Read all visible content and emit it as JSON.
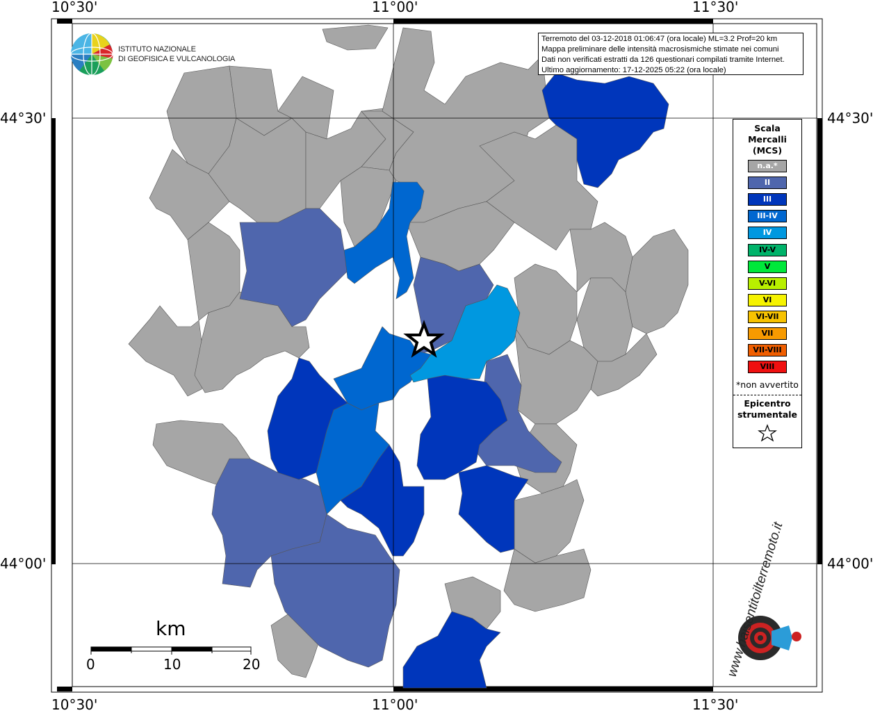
{
  "map": {
    "coordinates": {
      "lon_left": "10°30'",
      "lon_center": "11°00'",
      "lon_right": "11°30'",
      "lat_top": "44°30'",
      "lat_bottom": "44°00'"
    },
    "info": {
      "line1": "Terremoto del 03-12-2018 01:06:47 (ora locale) ML=3.2 Prof=20 km",
      "line2": "Mappa preliminare delle intensità macrosismiche stimate nei comuni",
      "line3": "Dati non verificati estratti da 126 questionari compilati tramite Internet.",
      "line4": "Ultimo aggiornamento: 17-12-2025 05:22 (ora locale)"
    },
    "legend": {
      "title_line1": "Scala",
      "title_line2": "Mercalli",
      "title_line3": "(MCS)",
      "items": [
        {
          "label": "n.a.*",
          "color": "#a6a6a6",
          "text_color": "#ffffff"
        },
        {
          "label": "II",
          "color": "#4f66ad",
          "text_color": "#ffffff"
        },
        {
          "label": "III",
          "color": "#0036bb",
          "text_color": "#ffffff"
        },
        {
          "label": "III-IV",
          "color": "#0067d0",
          "text_color": "#ffffff"
        },
        {
          "label": "IV",
          "color": "#0098e0",
          "text_color": "#ffffff"
        },
        {
          "label": "IV-V",
          "color": "#00b36a",
          "text_color": "#000000"
        },
        {
          "label": "V",
          "color": "#00e83a",
          "text_color": "#000000"
        },
        {
          "label": "V-VI",
          "color": "#b8f000",
          "text_color": "#000000"
        },
        {
          "label": "VI",
          "color": "#f6f300",
          "text_color": "#000000"
        },
        {
          "label": "VI-VII",
          "color": "#f7c200",
          "text_color": "#000000"
        },
        {
          "label": "VII",
          "color": "#f79a00",
          "text_color": "#000000"
        },
        {
          "label": "VII-VIII",
          "color": "#f05e00",
          "text_color": "#000000"
        },
        {
          "label": "VIII",
          "color": "#f01010",
          "text_color": "#000000"
        }
      ],
      "note": "*non avvertito",
      "epicenter_line1": "Epicentro",
      "epicenter_line2": "strumentale"
    },
    "scale_bar": {
      "unit": "km",
      "ticks": [
        "0",
        "10",
        "20"
      ]
    },
    "logo_ingv": {
      "line1": "ISTITUTO NAZIONALE",
      "line2": "DI GEOFISICA E VULCANOLOGIA"
    },
    "logo_hsit": {
      "text": "www.haisentitoilterremoto.it"
    },
    "intensity_colors": {
      "na": "#a6a6a6",
      "II": "#4f66ad",
      "III": "#0036bb",
      "III_IV": "#0067d0",
      "IV": "#0098e0"
    }
  }
}
